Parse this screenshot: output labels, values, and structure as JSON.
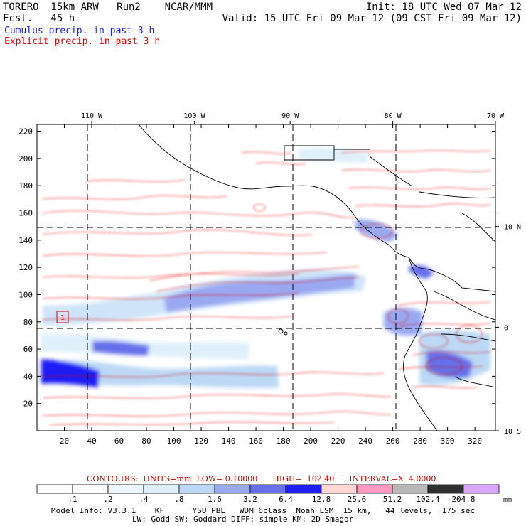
{
  "header": {
    "model": "TORERO  15km ARW   Run2    NCAR/MMM",
    "fcst": "Fcst.   45 h",
    "init": "Init: 18 UTC Wed 07 Mar 12",
    "valid": "Valid: 15 UTC Fri 09 Mar 12 (09 CST Fri 09 Mar 12)",
    "legend_cumulus": "Cumulus precip. in past 3 h",
    "legend_explicit": "Explicit precip. in past 3 h",
    "cumulus_color": "#1a1aff",
    "explicit_color": "#e60000"
  },
  "chart_data": {
    "type": "heatmap",
    "title": "Cumulus / Explicit precipitation in past 3 h",
    "x_grid_ticks": [
      "20",
      "40",
      "60",
      "80",
      "100",
      "120",
      "140",
      "160",
      "180",
      "200",
      "220",
      "240",
      "260",
      "280",
      "300",
      "320"
    ],
    "y_grid_ticks": [
      "20",
      "40",
      "60",
      "80",
      "100",
      "120",
      "140",
      "160",
      "180",
      "200",
      "220"
    ],
    "xlim": [
      0,
      335
    ],
    "ylim": [
      0,
      225
    ],
    "longitude_labels": [
      {
        "label": "110 W",
        "x": 40
      },
      {
        "label": "100 W",
        "x": 115
      },
      {
        "label": "90 W",
        "x": 185
      },
      {
        "label": "80 W",
        "x": 260
      },
      {
        "label": "70 W",
        "x": 335
      }
    ],
    "latitude_labels": [
      {
        "label": "10 N",
        "y": 150
      },
      {
        "label": "0",
        "y": 76
      },
      {
        "label": "10 S",
        "y": 0
      }
    ],
    "contours": {
      "units": "mm",
      "low": "0.10000",
      "high": "102.40",
      "interval": "4.0000",
      "text": "CONTOURS:  UNITS=mm  LOW= 0.10000      HIGH=  102.40      INTERVAL=X  4.0000"
    },
    "colorbar": {
      "unit": "mm",
      "labels": [
        ".1",
        ".2",
        ".4",
        ".8",
        "1.6",
        "3.2",
        "6.4",
        "12.8",
        "25.6",
        "51.2",
        "102.4",
        "204.8"
      ],
      "colors": [
        "#ffffff",
        "#ffffff",
        "#eef6ff",
        "#dff0fb",
        "#bcd8f5",
        "#9aa8f2",
        "#6670ea",
        "#1f1ff5",
        "#ffd6d6",
        "#ff99c2",
        "#b8b8b8",
        "#303030",
        "#d9a6ff"
      ]
    },
    "annotation_box": "1"
  },
  "footer": {
    "line1": "Model Info: V3.3.1    KF      YSU PBL   WDM 6class  Noah LSM  15 km,   44 levels,  175 sec",
    "line2": "LW: Godd SW: Goddard DIFF: simple KM: 2D Smagor"
  }
}
